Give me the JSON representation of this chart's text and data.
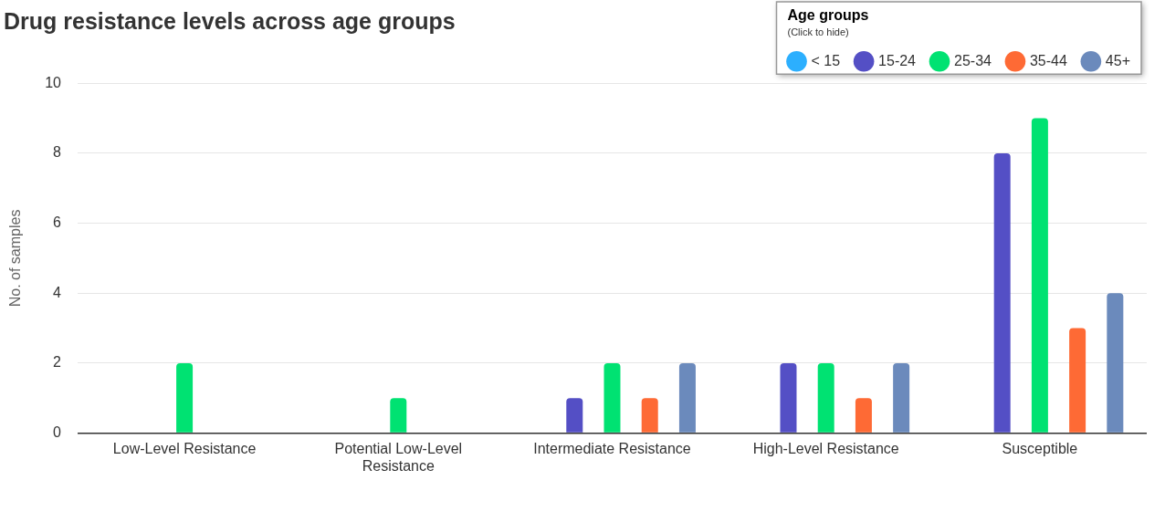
{
  "chart_data": {
    "type": "bar",
    "title": "Drug resistance levels across age groups",
    "ylabel": "No. of samples",
    "legend_title": "Age groups",
    "annotations": [
      "(Click to hide)"
    ],
    "categories": [
      "Low-Level Resistance",
      [
        "Potential Low-Level",
        "Resistance"
      ],
      "Intermediate Resistance",
      "High-Level Resistance",
      "Susceptible"
    ],
    "series": [
      {
        "name": "< 15",
        "color": "#2caffe",
        "values": [
          null,
          null,
          null,
          null,
          null
        ]
      },
      {
        "name": "15-24",
        "color": "#544fc5",
        "values": [
          null,
          null,
          1,
          2,
          8
        ]
      },
      {
        "name": "25-34",
        "color": "#00e272",
        "values": [
          2,
          1,
          2,
          2,
          9
        ]
      },
      {
        "name": "35-44",
        "color": "#fe6a35",
        "values": [
          null,
          null,
          1,
          1,
          3
        ]
      },
      {
        "name": "45+",
        "color": "#6b8abc",
        "values": [
          null,
          null,
          2,
          2,
          4
        ]
      }
    ],
    "ylim": [
      0,
      10
    ],
    "yticks": [
      0,
      2,
      4,
      6,
      8,
      10
    ],
    "grid": "y",
    "legend": "top right"
  }
}
